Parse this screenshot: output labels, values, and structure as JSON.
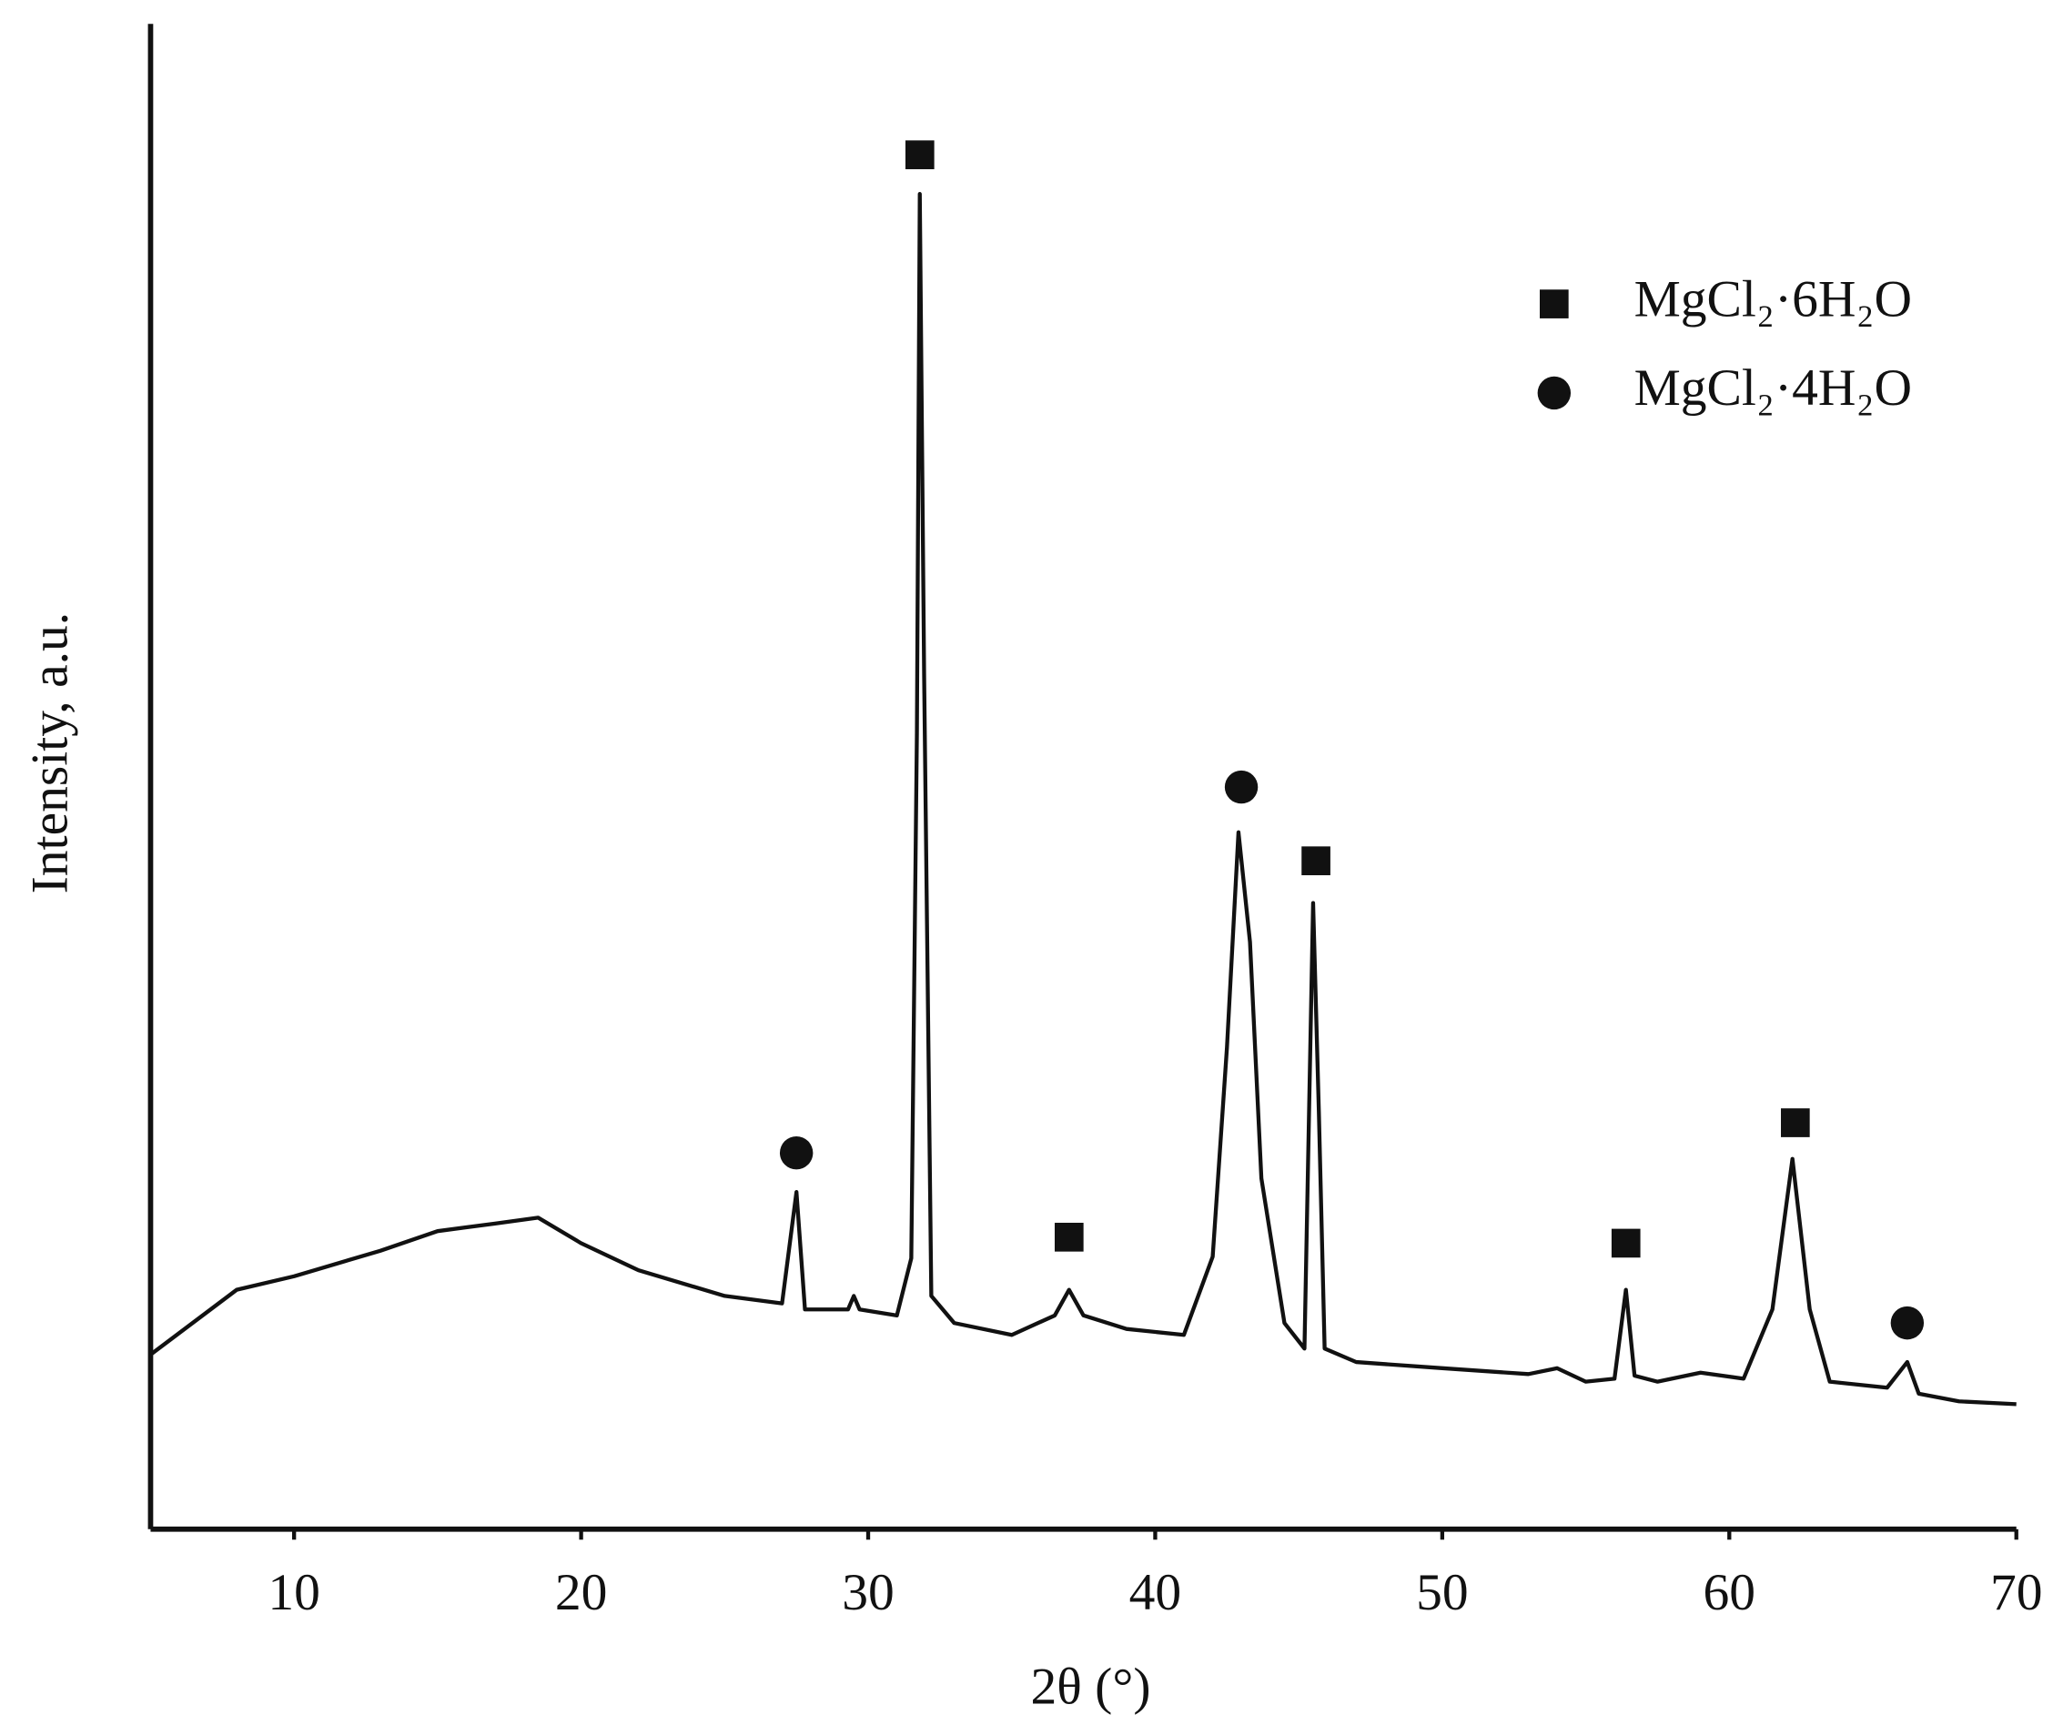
{
  "chart_data": {
    "type": "line",
    "x_label": "2θ (°)",
    "y_label": "Intensity, a.u.",
    "xlim": [
      5,
      70
    ],
    "xticks": [
      10,
      20,
      30,
      40,
      50,
      60,
      70
    ],
    "ylim": [
      0,
      100
    ],
    "pattern": {
      "color": "#111111",
      "x": [
        5,
        8,
        10,
        13,
        15,
        17,
        18.5,
        20,
        22,
        25,
        27,
        27.5,
        27.8,
        29.3,
        29.5,
        29.7,
        31,
        31.5,
        31.7,
        31.8,
        31.95,
        32.2,
        33,
        35,
        36.5,
        37,
        37.5,
        39,
        41,
        42,
        42.5,
        42.9,
        43.3,
        43.7,
        44.5,
        45.2,
        45.5,
        45.7,
        45.9,
        47,
        50,
        53,
        54,
        55,
        56,
        56.4,
        56.7,
        57.5,
        59,
        60.5,
        61.5,
        62.2,
        62.8,
        63.5,
        65.5,
        66.2,
        66.6,
        68,
        70
      ],
      "y": [
        11.6,
        15.9,
        16.8,
        18.5,
        19.8,
        20.3,
        20.7,
        19.0,
        17.2,
        15.5,
        15.0,
        22.4,
        14.6,
        14.6,
        15.5,
        14.6,
        14.2,
        18.0,
        52.9,
        88.7,
        56.8,
        15.5,
        13.7,
        12.9,
        14.2,
        15.9,
        14.2,
        13.3,
        12.9,
        18.1,
        32.0,
        46.3,
        39.0,
        23.3,
        13.7,
        12.0,
        41.6,
        27.7,
        12.0,
        11.1,
        10.7,
        10.3,
        10.7,
        9.8,
        10.0,
        15.9,
        10.2,
        9.8,
        10.4,
        10.0,
        14.6,
        24.6,
        14.6,
        9.8,
        9.4,
        11.1,
        9.0,
        8.5,
        8.3
      ]
    },
    "series": [
      {
        "name": "MgCl₂·6H₂O",
        "color": "#111111",
        "shape": "square",
        "peaks": {
          "x": [
            31.8,
            37,
            45.6,
            56.4,
            62.3
          ],
          "y": [
            91.3,
            19.4,
            44.4,
            19.0,
            27.0
          ]
        }
      },
      {
        "name": "MgCl₂·4H₂O",
        "color": "#111111",
        "shape": "circle",
        "peaks": {
          "x": [
            27.5,
            43,
            66.2
          ],
          "y": [
            25.0,
            49.3,
            13.7
          ]
        }
      }
    ]
  }
}
